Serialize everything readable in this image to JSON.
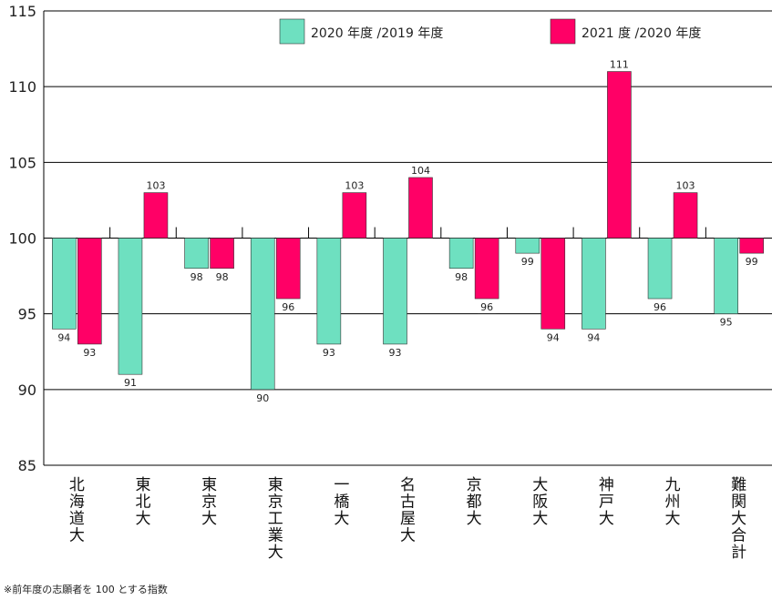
{
  "chart_data": {
    "type": "bar",
    "categories": [
      "北海道大",
      "東北大",
      "東京大",
      "東京工業大",
      "一橋大",
      "名古屋大",
      "京都大",
      "大阪大",
      "神戸大",
      "九州大",
      "難関大合計"
    ],
    "series": [
      {
        "name": "2020 年度 /2019 年度",
        "values": [
          94,
          91,
          98,
          90,
          93,
          93,
          98,
          99,
          94,
          96,
          95
        ],
        "color": "#6ee0c0"
      },
      {
        "name": "2021 度 /2020 年度",
        "values": [
          93,
          103,
          98,
          96,
          103,
          104,
          96,
          94,
          111,
          103,
          99
        ],
        "color": "#ff0066"
      }
    ],
    "ylim": [
      85,
      115
    ],
    "yticks": [
      85,
      90,
      95,
      100,
      105,
      110,
      115
    ],
    "baseline": 100,
    "grid": true,
    "legend_position": "top-right"
  },
  "footnote": "※前年度の志願者を 100 とする指数"
}
